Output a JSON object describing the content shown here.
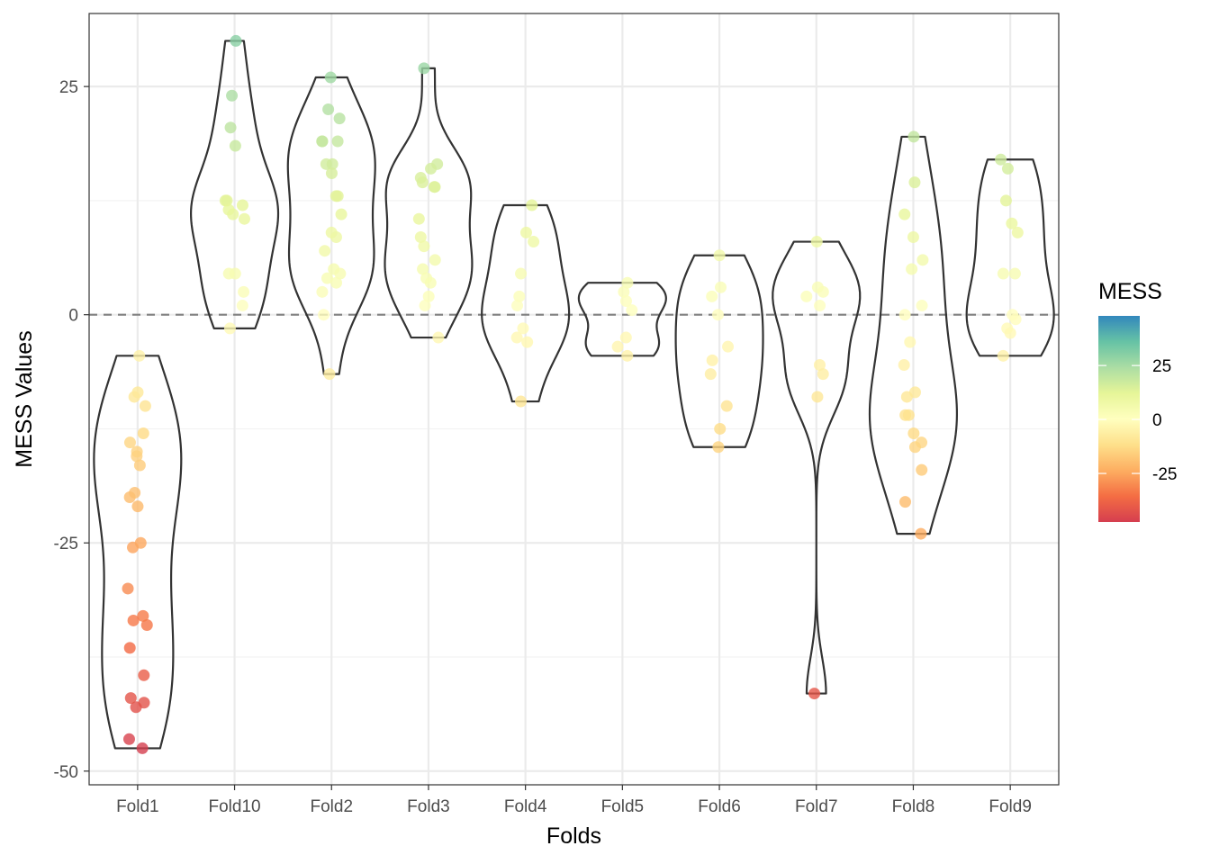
{
  "chart_data": {
    "type": "violin",
    "xlabel": "Folds",
    "ylabel": "MESS Values",
    "categories": [
      "Fold1",
      "Fold10",
      "Fold2",
      "Fold3",
      "Fold4",
      "Fold5",
      "Fold6",
      "Fold7",
      "Fold8",
      "Fold9"
    ],
    "ylim": [
      -51.5,
      33
    ],
    "yticks": [
      -50,
      -25,
      0,
      25
    ],
    "ytick_labels": [
      "-50",
      "-25",
      "0",
      "25"
    ],
    "reference_line": {
      "y": 0,
      "style": "dashed",
      "color": "#808080"
    },
    "grid": true,
    "legend": {
      "title": "MESS",
      "placement": "right",
      "range": [
        -47.5,
        48
      ],
      "ticks": [
        25,
        0,
        -25
      ],
      "tick_labels": [
        "25",
        "0",
        "-25"
      ],
      "colors": [
        "#d53e4f",
        "#f46d43",
        "#fdae61",
        "#fee08b",
        "#ffffbf",
        "#e6f598",
        "#abdda4",
        "#66c2a5",
        "#3288bd"
      ]
    },
    "series": [
      {
        "category": "Fold1",
        "points": [
          -47.5,
          -46.5,
          -43,
          -42.5,
          -42,
          -39.5,
          -36.5,
          -34,
          -33.5,
          -33,
          -30,
          -25.5,
          -25,
          -21,
          -20,
          -19.5,
          -16.5,
          -15.5,
          -15,
          -14,
          -13,
          -10,
          -9,
          -8.5,
          -4.5
        ]
      },
      {
        "category": "Fold10",
        "points": [
          30,
          24,
          20.5,
          18.5,
          12.5,
          12.5,
          12,
          11.5,
          11,
          10.5,
          4.5,
          4.5,
          2.5,
          1,
          -1.5
        ]
      },
      {
        "category": "Fold2",
        "points": [
          26,
          22.5,
          21.5,
          19,
          19,
          19,
          16.5,
          16.5,
          15.5,
          13,
          13,
          11,
          9,
          8.5,
          7,
          5,
          4.5,
          4,
          3.5,
          2.5,
          0,
          -6.5
        ]
      },
      {
        "category": "Fold3",
        "points": [
          27,
          16.5,
          16,
          15,
          14.5,
          14,
          14,
          10.5,
          8.5,
          7.5,
          6,
          5,
          4,
          3.5,
          2,
          1,
          -2.5
        ]
      },
      {
        "category": "Fold4",
        "points": [
          12,
          9,
          8,
          4.5,
          2,
          1,
          -1.5,
          -2.5,
          -3,
          -9.5
        ]
      },
      {
        "category": "Fold5",
        "points": [
          3.5,
          2.5,
          1.5,
          0.5,
          -2.5,
          -3.5,
          -4.5
        ]
      },
      {
        "category": "Fold6",
        "points": [
          6.5,
          3,
          2,
          0,
          -3.5,
          -5,
          -6.5,
          -10,
          -12.5,
          -14.5
        ]
      },
      {
        "category": "Fold7",
        "points": [
          8,
          3,
          2.5,
          2,
          1,
          -5.5,
          -6.5,
          -9,
          -41.5
        ]
      },
      {
        "category": "Fold8",
        "points": [
          19.5,
          14.5,
          11,
          8.5,
          6,
          5,
          1,
          0,
          -3,
          -5.5,
          -8.5,
          -9,
          -11,
          -11,
          -13,
          -14,
          -14.5,
          -17,
          -20.5,
          -24
        ]
      },
      {
        "category": "Fold9",
        "points": [
          17,
          16,
          12.5,
          10,
          9,
          4.5,
          4.5,
          0,
          -0.5,
          -1.5,
          -2,
          -4.5
        ]
      }
    ]
  }
}
